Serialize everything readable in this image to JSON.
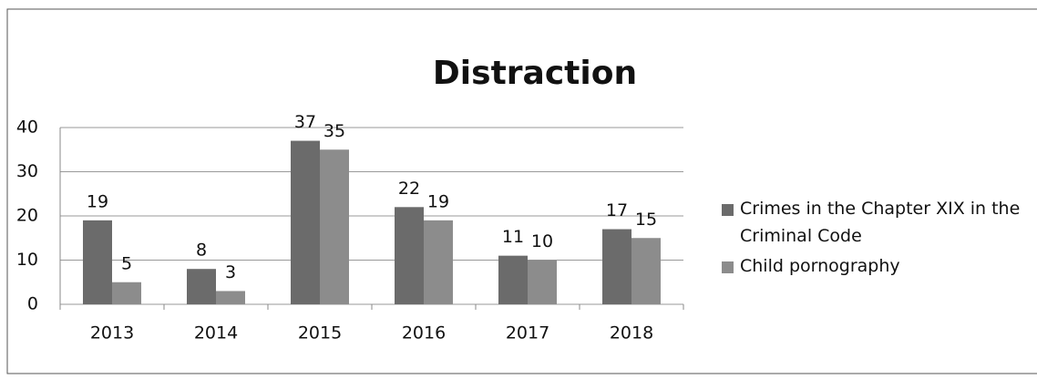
{
  "chart_data": {
    "type": "bar",
    "title": "Distraction",
    "categories": [
      "2013",
      "2014",
      "2015",
      "2016",
      "2017",
      "2018"
    ],
    "series": [
      {
        "name": "Crimes in the Chapter XIX in the Criminal Code",
        "color": "#6b6b6b",
        "values": [
          19,
          8,
          37,
          22,
          11,
          17
        ]
      },
      {
        "name": "Child pornography",
        "color": "#8c8c8c",
        "values": [
          5,
          3,
          35,
          19,
          10,
          15
        ]
      }
    ],
    "ylim": [
      0,
      40
    ],
    "yticks": [
      0,
      10,
      20,
      30,
      40
    ],
    "grid": true,
    "legend": "right"
  }
}
